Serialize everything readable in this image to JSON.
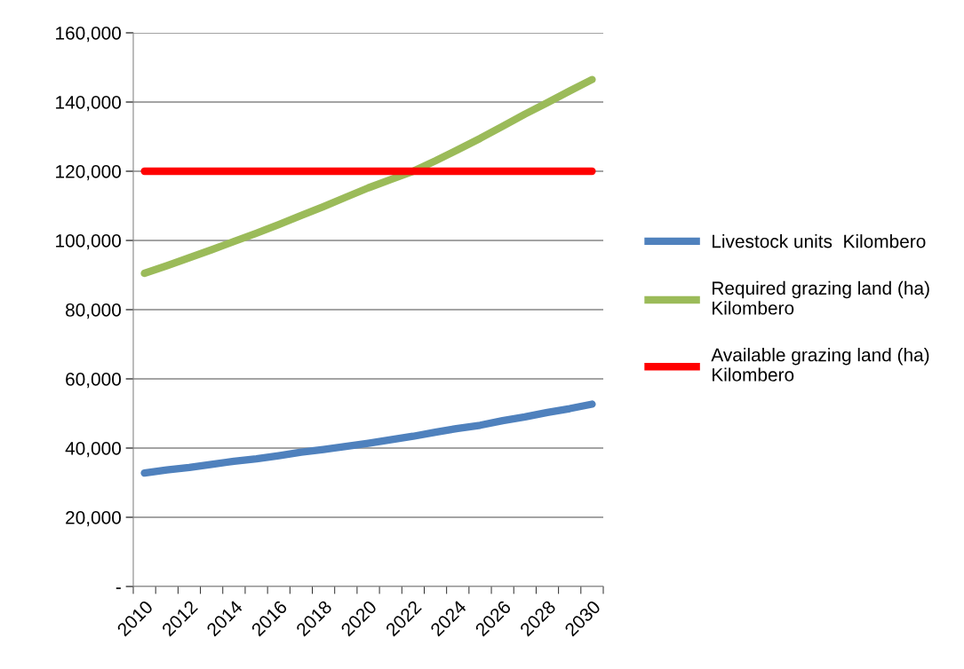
{
  "chart_data": {
    "type": "line",
    "categories": [
      "2010",
      null,
      "2012",
      null,
      "2014",
      null,
      "2016",
      null,
      "2018",
      null,
      "2020",
      null,
      "2022",
      null,
      "2024",
      null,
      "2026",
      null,
      "2028",
      null,
      "2030"
    ],
    "series": [
      {
        "name": "Livestock units  Kilombero",
        "color": "#4f81bd",
        "values": [
          32800,
          33700,
          34400,
          35300,
          36200,
          36900,
          37800,
          38800,
          39600,
          40500,
          41400,
          42400,
          43400,
          44600,
          45700,
          46600,
          47900,
          49000,
          50300,
          51400,
          52700
        ]
      },
      {
        "name": "Required grazing land (ha)\nKilombero",
        "color": "#9bbb59",
        "values": [
          90500,
          92700,
          95000,
          97300,
          99700,
          102100,
          104600,
          107200,
          109800,
          112500,
          115200,
          117600,
          120000,
          123000,
          126200,
          129500,
          133000,
          136500,
          139800,
          143200,
          146500
        ]
      },
      {
        "name": "Available grazing land (ha)\nKilombero",
        "color": "#ff0000",
        "values": [
          120000,
          120000,
          120000,
          120000,
          120000,
          120000,
          120000,
          120000,
          120000,
          120000,
          120000,
          120000,
          120000,
          120000,
          120000,
          120000,
          120000,
          120000,
          120000,
          120000,
          120000
        ]
      }
    ],
    "ylim": [
      0,
      160000
    ],
    "yticks": [
      {
        "value": 0,
        "label": "-"
      },
      {
        "value": 20000,
        "label": "20,000"
      },
      {
        "value": 40000,
        "label": "40,000"
      },
      {
        "value": 60000,
        "label": "60,000"
      },
      {
        "value": 80000,
        "label": "80,000"
      },
      {
        "value": 100000,
        "label": "100,000"
      },
      {
        "value": 120000,
        "label": "120,000"
      },
      {
        "value": 140000,
        "label": "140,000"
      },
      {
        "value": 160000,
        "label": "160,000"
      }
    ],
    "grid": "y",
    "legend": "right",
    "marker": "none",
    "line_style": "solid"
  }
}
